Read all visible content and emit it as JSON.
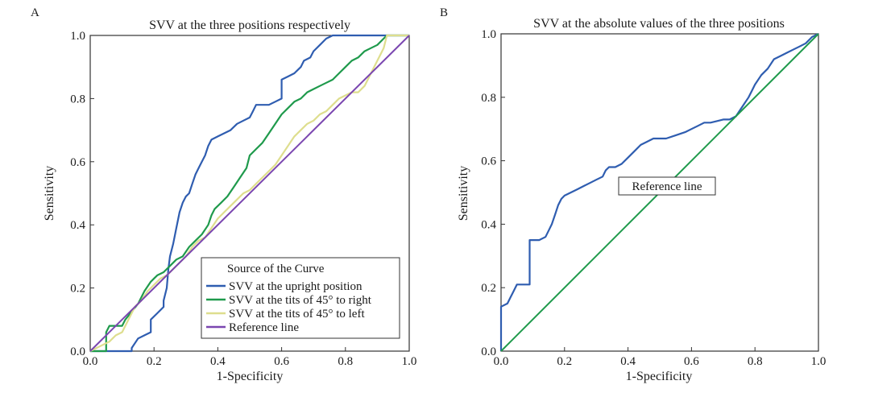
{
  "chart_data": [
    {
      "type": "line",
      "panel_label": "A",
      "title": "SVV at the three positions respectively",
      "xlabel": "1-Specificity",
      "ylabel": "Sensitivity",
      "xlim": [
        0,
        1
      ],
      "ylim": [
        0,
        1
      ],
      "xticks": [
        "0.0",
        "0.2",
        "0.4",
        "0.6",
        "0.8",
        "1.0"
      ],
      "yticks": [
        "0.0",
        "0.2",
        "0.4",
        "0.6",
        "0.8",
        "1.0"
      ],
      "legend": {
        "title": "Source of the Curve",
        "position": "bottom-right",
        "entries": [
          "SVV at the upright position",
          "SVV at the tits of 45° to right",
          "SVV at the tits of 45° to left",
          "Reference line"
        ]
      },
      "series": [
        {
          "name": "SVV at the upright position",
          "color": "#2f5db0",
          "x": [
            0,
            0.13,
            0.13,
            0.15,
            0.17,
            0.19,
            0.19,
            0.21,
            0.23,
            0.23,
            0.24,
            0.245,
            0.25,
            0.26,
            0.27,
            0.28,
            0.29,
            0.3,
            0.31,
            0.32,
            0.33,
            0.34,
            0.35,
            0.36,
            0.37,
            0.38,
            0.4,
            0.42,
            0.44,
            0.45,
            0.46,
            0.48,
            0.5,
            0.51,
            0.52,
            0.54,
            0.56,
            0.58,
            0.6,
            0.6,
            0.62,
            0.64,
            0.66,
            0.67,
            0.69,
            0.7,
            0.72,
            0.74,
            0.76,
            0.78,
            0.8,
            0.85,
            0.9,
            0.95,
            1.0
          ],
          "y": [
            0,
            0,
            0.01,
            0.04,
            0.05,
            0.06,
            0.1,
            0.12,
            0.14,
            0.16,
            0.2,
            0.26,
            0.3,
            0.34,
            0.39,
            0.44,
            0.47,
            0.49,
            0.5,
            0.53,
            0.56,
            0.58,
            0.6,
            0.62,
            0.65,
            0.67,
            0.68,
            0.69,
            0.7,
            0.71,
            0.72,
            0.73,
            0.74,
            0.76,
            0.78,
            0.78,
            0.78,
            0.79,
            0.8,
            0.86,
            0.87,
            0.88,
            0.9,
            0.92,
            0.93,
            0.95,
            0.97,
            0.99,
            1.0,
            1.0,
            1.0,
            1.0,
            1.0,
            1.0,
            1.0
          ]
        },
        {
          "name": "SVV at the tits of 45° to right",
          "color": "#1f9a4c",
          "x": [
            0,
            0.05,
            0.05,
            0.06,
            0.1,
            0.11,
            0.15,
            0.17,
            0.19,
            0.2,
            0.21,
            0.23,
            0.24,
            0.25,
            0.27,
            0.29,
            0.31,
            0.33,
            0.35,
            0.37,
            0.38,
            0.39,
            0.41,
            0.43,
            0.45,
            0.47,
            0.49,
            0.5,
            0.52,
            0.54,
            0.56,
            0.58,
            0.6,
            0.62,
            0.64,
            0.66,
            0.68,
            0.7,
            0.72,
            0.74,
            0.76,
            0.78,
            0.8,
            0.82,
            0.84,
            0.86,
            0.88,
            0.9,
            0.92,
            0.93,
            1.0
          ],
          "y": [
            0,
            0,
            0.06,
            0.08,
            0.08,
            0.1,
            0.15,
            0.19,
            0.22,
            0.23,
            0.24,
            0.25,
            0.26,
            0.27,
            0.29,
            0.3,
            0.33,
            0.35,
            0.37,
            0.4,
            0.43,
            0.45,
            0.47,
            0.49,
            0.52,
            0.55,
            0.58,
            0.62,
            0.64,
            0.66,
            0.69,
            0.72,
            0.75,
            0.77,
            0.79,
            0.8,
            0.82,
            0.83,
            0.84,
            0.85,
            0.86,
            0.88,
            0.9,
            0.92,
            0.93,
            0.95,
            0.96,
            0.97,
            0.99,
            1.0,
            1.0
          ]
        },
        {
          "name": "SVV at the tits of 45° to left",
          "color": "#dede8e",
          "x": [
            0,
            0.06,
            0.08,
            0.1,
            0.12,
            0.14,
            0.16,
            0.18,
            0.2,
            0.22,
            0.24,
            0.26,
            0.28,
            0.3,
            0.32,
            0.34,
            0.36,
            0.38,
            0.4,
            0.42,
            0.44,
            0.46,
            0.48,
            0.5,
            0.52,
            0.54,
            0.56,
            0.58,
            0.6,
            0.62,
            0.64,
            0.66,
            0.68,
            0.7,
            0.72,
            0.74,
            0.76,
            0.78,
            0.8,
            0.82,
            0.84,
            0.86,
            0.88,
            0.9,
            0.92,
            0.93,
            1.0
          ],
          "y": [
            0,
            0.03,
            0.05,
            0.06,
            0.1,
            0.14,
            0.16,
            0.19,
            0.21,
            0.23,
            0.24,
            0.26,
            0.28,
            0.3,
            0.33,
            0.35,
            0.36,
            0.39,
            0.42,
            0.44,
            0.46,
            0.48,
            0.5,
            0.51,
            0.53,
            0.55,
            0.57,
            0.59,
            0.62,
            0.65,
            0.68,
            0.7,
            0.72,
            0.73,
            0.75,
            0.76,
            0.78,
            0.8,
            0.81,
            0.82,
            0.82,
            0.84,
            0.88,
            0.92,
            0.96,
            1.0,
            1.0
          ]
        },
        {
          "name": "Reference line",
          "color": "#7a46b0",
          "x": [
            0,
            1
          ],
          "y": [
            0,
            1
          ]
        }
      ]
    },
    {
      "type": "line",
      "panel_label": "B",
      "title": "SVV at the absolute values of the three positions",
      "xlabel": "1-Specificity",
      "ylabel": "Sensitivity",
      "xlim": [
        0,
        1
      ],
      "ylim": [
        0,
        1
      ],
      "xticks": [
        "0.0",
        "0.2",
        "0.4",
        "0.6",
        "0.8",
        "1.0"
      ],
      "yticks": [
        "0.0",
        "0.2",
        "0.4",
        "0.6",
        "0.8",
        "1.0"
      ],
      "annotations": [
        "Reference line"
      ],
      "series": [
        {
          "name": "SVV",
          "color": "#2f5db0",
          "x": [
            0,
            0,
            0.02,
            0.03,
            0.04,
            0.05,
            0.09,
            0.09,
            0.12,
            0.14,
            0.15,
            0.16,
            0.17,
            0.18,
            0.19,
            0.2,
            0.22,
            0.24,
            0.26,
            0.28,
            0.3,
            0.32,
            0.33,
            0.34,
            0.36,
            0.38,
            0.4,
            0.42,
            0.44,
            0.46,
            0.48,
            0.5,
            0.52,
            0.55,
            0.58,
            0.6,
            0.62,
            0.64,
            0.66,
            0.7,
            0.72,
            0.74,
            0.76,
            0.78,
            0.79,
            0.8,
            0.82,
            0.84,
            0.86,
            0.88,
            0.9,
            0.92,
            0.94,
            0.96,
            0.98,
            1.0
          ],
          "y": [
            0,
            0.14,
            0.15,
            0.17,
            0.19,
            0.21,
            0.21,
            0.35,
            0.35,
            0.36,
            0.38,
            0.4,
            0.43,
            0.46,
            0.48,
            0.49,
            0.5,
            0.51,
            0.52,
            0.53,
            0.54,
            0.55,
            0.57,
            0.58,
            0.58,
            0.59,
            0.61,
            0.63,
            0.65,
            0.66,
            0.67,
            0.67,
            0.67,
            0.68,
            0.69,
            0.7,
            0.71,
            0.72,
            0.72,
            0.73,
            0.73,
            0.74,
            0.77,
            0.8,
            0.82,
            0.84,
            0.87,
            0.89,
            0.92,
            0.93,
            0.94,
            0.95,
            0.96,
            0.97,
            0.99,
            1.0
          ]
        },
        {
          "name": "Reference line",
          "color": "#1f9a4c",
          "x": [
            0,
            1
          ],
          "y": [
            0,
            1
          ]
        }
      ]
    }
  ]
}
